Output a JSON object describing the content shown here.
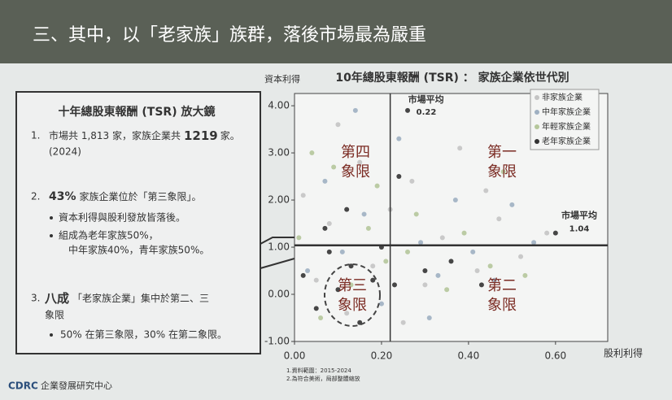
{
  "slide": {
    "title": "三、其中，以「老家族」族群，落後市場最為嚴重",
    "box": {
      "heading": "十年總股東報酬 (TSR) 放大鏡",
      "item1": {
        "num": "1.",
        "a": "市場共 1,813 家，家族企業共",
        "b": "1219",
        "c": "家。",
        "d": "(2024)"
      },
      "item2": {
        "num": "2.",
        "a": "43%",
        "b": "家族企業位於「第三象限」。",
        "c": "資本利得與股利發放皆落後。",
        "d": "組成為老年家族50%，",
        "e": "中年家族40%，青年家族50%。"
      },
      "item3": {
        "num": "3.",
        "a": "八成",
        "b": "「老家族企業」集中於第二、三",
        "c": "象限",
        "d": "50% 在第三象限，30% 在第二象限。"
      }
    },
    "footer": {
      "logo": "CDRC",
      "org": "企業發展研究中心"
    }
  },
  "chart_data": {
    "type": "scatter",
    "title": "10年總股東報酬 (TSR) ： 家族企業依世代別",
    "y_label": "資本利得",
    "x_label": "股利利得",
    "xlim": [
      0,
      0.72
    ],
    "ylim": [
      -1,
      4.26
    ],
    "xticks": [
      {
        "value": 0,
        "label": "0.00"
      },
      {
        "value": 0.2,
        "label": "0.20"
      },
      {
        "value": 0.4,
        "label": "0.40"
      },
      {
        "value": 0.6,
        "label": "0.60"
      }
    ],
    "yticks": [
      {
        "value": -1,
        "label": "-1.00"
      },
      {
        "value": 0,
        "label": "0.00"
      },
      {
        "value": 1,
        "label": "1.00"
      },
      {
        "value": 2,
        "label": "2.00"
      },
      {
        "value": 3,
        "label": "3.00"
      },
      {
        "value": 4,
        "label": "4.00"
      }
    ],
    "market_avg_x": {
      "label": "市場平均",
      "value": 0.22
    },
    "market_avg_y": {
      "label": "市場平均",
      "value": 1.04
    },
    "quadrants": [
      "第一象限",
      "第二象限",
      "第三象限",
      "第四象限"
    ],
    "notes": [
      "1.資料範圍：2015-2024",
      "2.為符合美術，局部整體縮放"
    ],
    "series": [
      {
        "name": "非家族企業",
        "color": "#c4c4c4",
        "x": [
          0.02,
          0.05,
          0.08,
          0.12,
          0.15,
          0.18,
          0.22,
          0.27,
          0.3,
          0.34,
          0.38,
          0.42,
          0.47,
          0.52,
          0.58,
          0.1,
          0.25,
          0.44
        ],
        "values": [
          2.1,
          0.3,
          1.5,
          -0.4,
          2.8,
          0.6,
          1.8,
          2.4,
          0.2,
          1.2,
          3.1,
          0.5,
          1.6,
          0.8,
          1.3,
          3.6,
          -0.6,
          2.2
        ]
      },
      {
        "name": "中年家族企業",
        "color": "#9fb0c2",
        "x": [
          0.03,
          0.07,
          0.11,
          0.16,
          0.2,
          0.24,
          0.29,
          0.33,
          0.37,
          0.41,
          0.46,
          0.5,
          0.55,
          0.14,
          0.31
        ],
        "values": [
          0.5,
          2.4,
          0.9,
          1.7,
          -0.2,
          3.3,
          1.1,
          0.4,
          2.0,
          0.9,
          0.3,
          1.9,
          1.1,
          3.9,
          -0.5
        ]
      },
      {
        "name": "年輕家族企業",
        "color": "#b5c79b",
        "x": [
          0.01,
          0.06,
          0.09,
          0.13,
          0.17,
          0.21,
          0.26,
          0.28,
          0.35,
          0.39,
          0.45,
          0.48,
          0.53,
          0.04,
          0.19
        ],
        "values": [
          1.2,
          -0.5,
          2.7,
          0.2,
          1.4,
          0.7,
          0.9,
          1.7,
          0.1,
          1.3,
          0.6,
          2.6,
          0.4,
          3.0,
          2.3
        ]
      },
      {
        "name": "老年家族企業",
        "color": "#333333",
        "x": [
          0.02,
          0.05,
          0.08,
          0.1,
          0.13,
          0.15,
          0.18,
          0.2,
          0.23,
          0.26,
          0.3,
          0.36,
          0.43,
          0.6,
          0.24,
          0.12,
          0.07
        ],
        "values": [
          0.4,
          -0.3,
          0.9,
          0.1,
          0.6,
          -0.6,
          0.3,
          1.0,
          0.2,
          3.9,
          0.5,
          0.7,
          0.2,
          1.3,
          2.5,
          1.8,
          1.4
        ]
      }
    ]
  }
}
